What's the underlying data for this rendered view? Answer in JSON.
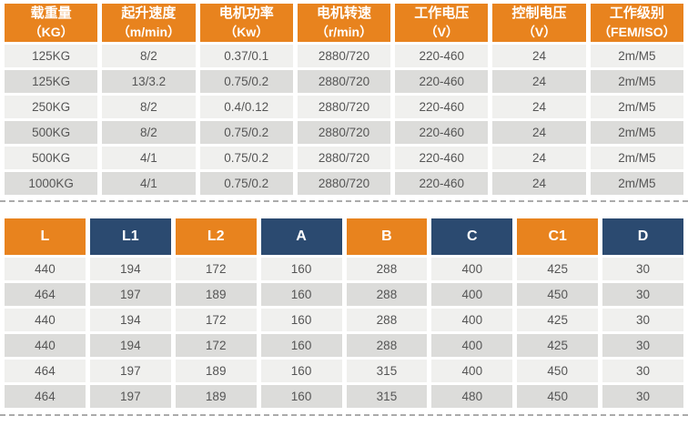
{
  "colors": {
    "orange": "#E8831E",
    "navy": "#2B4A70",
    "row_light": "#F0F0EE",
    "row_dark": "#DCDCDA",
    "body_text": "#555555",
    "header_text": "#FFFFFF",
    "dashed_line": "#ABABAB"
  },
  "spec_table": {
    "columns": [
      {
        "title": "载重量",
        "unit": "（KG）"
      },
      {
        "title": "起升速度",
        "unit": "（m/min）"
      },
      {
        "title": "电机功率",
        "unit": "（Kw）"
      },
      {
        "title": "电机转速",
        "unit": "（r/min）"
      },
      {
        "title": "工作电压",
        "unit": "（V）"
      },
      {
        "title": "控制电压",
        "unit": "（V）"
      },
      {
        "title": "工作级别",
        "unit": "（FEM/ISO）"
      }
    ],
    "rows": [
      [
        "125KG",
        "8/2",
        "0.37/0.1",
        "2880/720",
        "220-460",
        "24",
        "2m/M5"
      ],
      [
        "125KG",
        "13/3.2",
        "0.75/0.2",
        "2880/720",
        "220-460",
        "24",
        "2m/M5"
      ],
      [
        "250KG",
        "8/2",
        "0.4/0.12",
        "2880/720",
        "220-460",
        "24",
        "2m/M5"
      ],
      [
        "500KG",
        "8/2",
        "0.75/0.2",
        "2880/720",
        "220-460",
        "24",
        "2m/M5"
      ],
      [
        "500KG",
        "4/1",
        "0.75/0.2",
        "2880/720",
        "220-460",
        "24",
        "2m/M5"
      ],
      [
        "1000KG",
        "4/1",
        "0.75/0.2",
        "2880/720",
        "220-460",
        "24",
        "2m/M5"
      ]
    ]
  },
  "dimension_table": {
    "columns": [
      {
        "label": "L",
        "color": "orange"
      },
      {
        "label": "L1",
        "color": "navy"
      },
      {
        "label": "L2",
        "color": "orange"
      },
      {
        "label": "A",
        "color": "navy"
      },
      {
        "label": "B",
        "color": "orange"
      },
      {
        "label": "C",
        "color": "navy"
      },
      {
        "label": "C1",
        "color": "orange"
      },
      {
        "label": "D",
        "color": "navy"
      }
    ],
    "rows": [
      [
        "440",
        "194",
        "172",
        "160",
        "288",
        "400",
        "425",
        "30"
      ],
      [
        "464",
        "197",
        "189",
        "160",
        "288",
        "400",
        "450",
        "30"
      ],
      [
        "440",
        "194",
        "172",
        "160",
        "288",
        "400",
        "425",
        "30"
      ],
      [
        "440",
        "194",
        "172",
        "160",
        "288",
        "400",
        "425",
        "30"
      ],
      [
        "464",
        "197",
        "189",
        "160",
        "315",
        "400",
        "450",
        "30"
      ],
      [
        "464",
        "197",
        "189",
        "160",
        "315",
        "480",
        "450",
        "30"
      ]
    ]
  }
}
